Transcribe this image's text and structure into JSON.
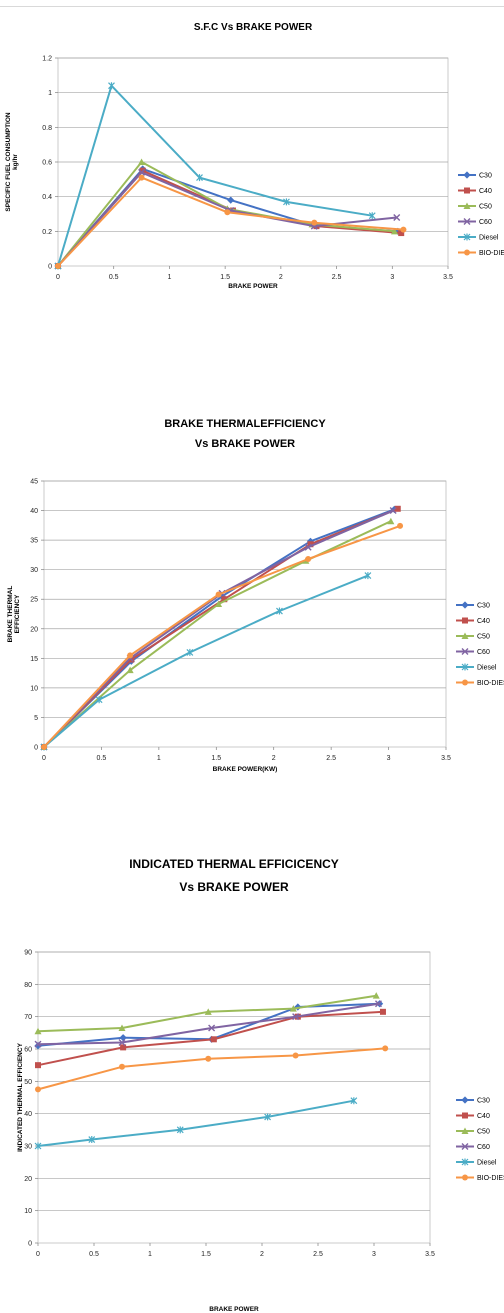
{
  "series_colors": {
    "C30": "#4472C4",
    "C40": "#C0504D",
    "C50": "#9BBB59",
    "C60": "#8064A2",
    "Diesel": "#4BACC6",
    "BIO-DIESEL": "#F79646"
  },
  "series_markers": {
    "C30": "diamond",
    "C40": "square",
    "C50": "triangle",
    "C60": "x",
    "Diesel": "star",
    "BIO-DIESEL": "circle"
  },
  "chart_data": [
    {
      "type": "line",
      "title": [
        "S.F.C Vs BRAKE POWER"
      ],
      "xlabel": "BRAKE POWER",
      "ylabel": [
        "SPECIFIC FUEL CONSUMPTION",
        "kg/hr"
      ],
      "xlim": [
        0,
        3.5
      ],
      "ylim": [
        0,
        1.2
      ],
      "xticks": [
        "0",
        "0.5",
        "1",
        "1.5",
        "2",
        "2.5",
        "3",
        "3.5"
      ],
      "yticks": [
        "0",
        "0.2",
        "0.4",
        "0.6",
        "0.8",
        "1",
        "1.2"
      ],
      "grid": "horizontal",
      "legend": "right",
      "series": [
        {
          "name": "C30",
          "points": [
            [
              0,
              0
            ],
            [
              0.76,
              0.56
            ],
            [
              1.55,
              0.38
            ],
            [
              2.32,
              0.23
            ],
            [
              3.05,
              0.2
            ]
          ]
        },
        {
          "name": "C40",
          "points": [
            [
              0,
              0
            ],
            [
              0.76,
              0.55
            ],
            [
              1.57,
              0.32
            ],
            [
              2.32,
              0.23
            ],
            [
              3.08,
              0.19
            ]
          ]
        },
        {
          "name": "C50",
          "points": [
            [
              0,
              0
            ],
            [
              0.75,
              0.6
            ],
            [
              1.52,
              0.33
            ],
            [
              2.28,
              0.24
            ],
            [
              3.02,
              0.2
            ]
          ]
        },
        {
          "name": "C60",
          "points": [
            [
              0,
              0
            ],
            [
              0.75,
              0.54
            ],
            [
              1.55,
              0.32
            ],
            [
              2.3,
              0.23
            ],
            [
              3.04,
              0.28
            ]
          ]
        },
        {
          "name": "Diesel",
          "points": [
            [
              0,
              0
            ],
            [
              0.48,
              1.04
            ],
            [
              1.27,
              0.51
            ],
            [
              2.05,
              0.37
            ],
            [
              2.82,
              0.29
            ]
          ]
        },
        {
          "name": "BIO-DIESEL",
          "points": [
            [
              0,
              0
            ],
            [
              0.75,
              0.51
            ],
            [
              1.52,
              0.31
            ],
            [
              2.3,
              0.25
            ],
            [
              3.1,
              0.21
            ]
          ]
        }
      ]
    },
    {
      "type": "line",
      "title": [
        "BRAKE THERMALEFFICIENCY",
        "Vs BRAKE POWER"
      ],
      "xlabel": "BRAKE POWER(KW)",
      "ylabel": [
        "BRAKE THERMAL",
        "EFFICIENCY"
      ],
      "xlim": [
        0,
        3.5
      ],
      "ylim": [
        0,
        45
      ],
      "xticks": [
        "0",
        "0.5",
        "1",
        "1.5",
        "2",
        "2.5",
        "3",
        "3.5"
      ],
      "yticks": [
        "0",
        "5",
        "10",
        "15",
        "20",
        "25",
        "30",
        "35",
        "40",
        "45"
      ],
      "grid": "horizontal",
      "legend": "right",
      "series": [
        {
          "name": "C30",
          "points": [
            [
              0,
              0
            ],
            [
              0.76,
              14.5
            ],
            [
              1.55,
              25.5
            ],
            [
              2.32,
              34.8
            ],
            [
              3.05,
              40.2
            ]
          ]
        },
        {
          "name": "C40",
          "points": [
            [
              0,
              0
            ],
            [
              0.76,
              14.8
            ],
            [
              1.57,
              25.0
            ],
            [
              2.32,
              34.3
            ],
            [
              3.08,
              40.3
            ]
          ]
        },
        {
          "name": "C50",
          "points": [
            [
              0,
              0
            ],
            [
              0.75,
              13.0
            ],
            [
              1.52,
              24.2
            ],
            [
              2.28,
              31.5
            ],
            [
              3.02,
              38.2
            ]
          ]
        },
        {
          "name": "C60",
          "points": [
            [
              0,
              0
            ],
            [
              0.75,
              15.0
            ],
            [
              1.55,
              26.0
            ],
            [
              2.3,
              33.8
            ],
            [
              3.04,
              40.0
            ]
          ]
        },
        {
          "name": "Diesel",
          "points": [
            [
              0,
              0
            ],
            [
              0.48,
              8.0
            ],
            [
              1.27,
              16.0
            ],
            [
              2.05,
              23.0
            ],
            [
              2.82,
              29.0
            ]
          ]
        },
        {
          "name": "BIO-DIESEL",
          "points": [
            [
              0,
              0
            ],
            [
              0.75,
              15.5
            ],
            [
              1.52,
              25.8
            ],
            [
              2.3,
              31.8
            ],
            [
              3.1,
              37.4
            ]
          ]
        }
      ]
    },
    {
      "type": "line",
      "title": [
        "INDICATED THERMAL EFFICICENCY",
        "Vs BRAKE POWER"
      ],
      "xlabel": "BRAKE POWER",
      "ylabel": [
        "INDICATED THERMAL  EFFICIENCY"
      ],
      "xlim": [
        0,
        3.5
      ],
      "ylim": [
        0,
        90
      ],
      "xticks": [
        "0",
        "0.5",
        "1",
        "1.5",
        "2",
        "2.5",
        "3",
        "3.5"
      ],
      "yticks": [
        "0",
        "10",
        "20",
        "30",
        "40",
        "50",
        "60",
        "70",
        "80",
        "90"
      ],
      "grid": "horizontal",
      "legend": "right",
      "series": [
        {
          "name": "C30",
          "points": [
            [
              0,
              61
            ],
            [
              0.76,
              63.5
            ],
            [
              1.55,
              63.0
            ],
            [
              2.32,
              73.0
            ],
            [
              3.05,
              74.0
            ]
          ]
        },
        {
          "name": "C40",
          "points": [
            [
              0,
              55
            ],
            [
              0.76,
              60.5
            ],
            [
              1.57,
              63.0
            ],
            [
              2.32,
              70.0
            ],
            [
              3.08,
              71.5
            ]
          ]
        },
        {
          "name": "C50",
          "points": [
            [
              0,
              65.5
            ],
            [
              0.75,
              66.5
            ],
            [
              1.52,
              71.5
            ],
            [
              2.28,
              72.5
            ],
            [
              3.02,
              76.5
            ]
          ]
        },
        {
          "name": "C60",
          "points": [
            [
              0,
              61.5
            ],
            [
              0.75,
              62.0
            ],
            [
              1.55,
              66.5
            ],
            [
              2.3,
              70.0
            ],
            [
              3.04,
              74.0
            ]
          ]
        },
        {
          "name": "Diesel",
          "points": [
            [
              0,
              30
            ],
            [
              0.48,
              32.0
            ],
            [
              1.27,
              35.0
            ],
            [
              2.05,
              39.0
            ],
            [
              2.82,
              44.0
            ]
          ]
        },
        {
          "name": "BIO-DIESEL",
          "points": [
            [
              0,
              47.5
            ],
            [
              0.75,
              54.5
            ],
            [
              1.52,
              57.0
            ],
            [
              2.3,
              58.0
            ],
            [
              3.1,
              60.2
            ]
          ]
        }
      ]
    }
  ]
}
